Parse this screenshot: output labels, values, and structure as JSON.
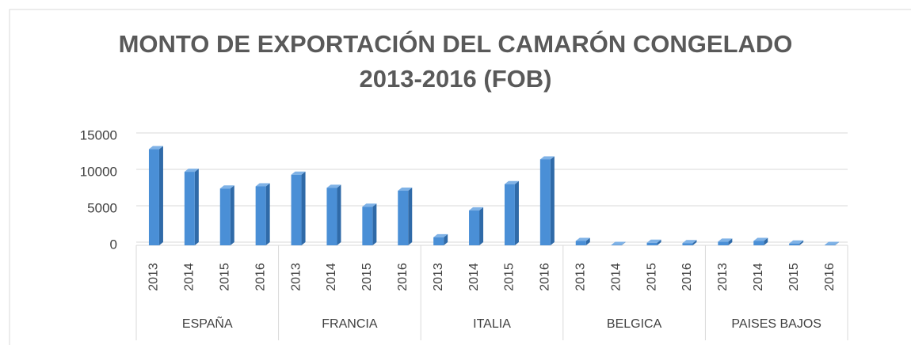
{
  "chart_data": {
    "type": "bar",
    "title": [
      "MONTO DE EXPORTACIÓN DEL CAMARÓN CONGELADO",
      "2013-2016 (FOB)"
    ],
    "groups": [
      {
        "label": "ESPAÑA",
        "categories": [
          "2013",
          "2014",
          "2015",
          "2016"
        ],
        "values": [
          13200,
          10100,
          7800,
          8100
        ]
      },
      {
        "label": "FRANCIA",
        "categories": [
          "2013",
          "2014",
          "2015",
          "2016"
        ],
        "values": [
          9700,
          7900,
          5300,
          7500
        ]
      },
      {
        "label": "ITALIA",
        "categories": [
          "2013",
          "2014",
          "2015",
          "2016"
        ],
        "values": [
          1100,
          4800,
          8400,
          11800
        ]
      },
      {
        "label": "BELGICA",
        "categories": [
          "2013",
          "2014",
          "2015",
          "2016"
        ],
        "values": [
          600,
          50,
          350,
          300
        ]
      },
      {
        "label": "PAISES BAJOS",
        "categories": [
          "2013",
          "2014",
          "2015",
          "2016"
        ],
        "values": [
          500,
          600,
          250,
          50
        ]
      }
    ],
    "color": "#4a8fd6",
    "ylim": [
      0,
      15000
    ],
    "yticks": [
      0,
      5000,
      10000,
      15000
    ],
    "grid": true
  }
}
